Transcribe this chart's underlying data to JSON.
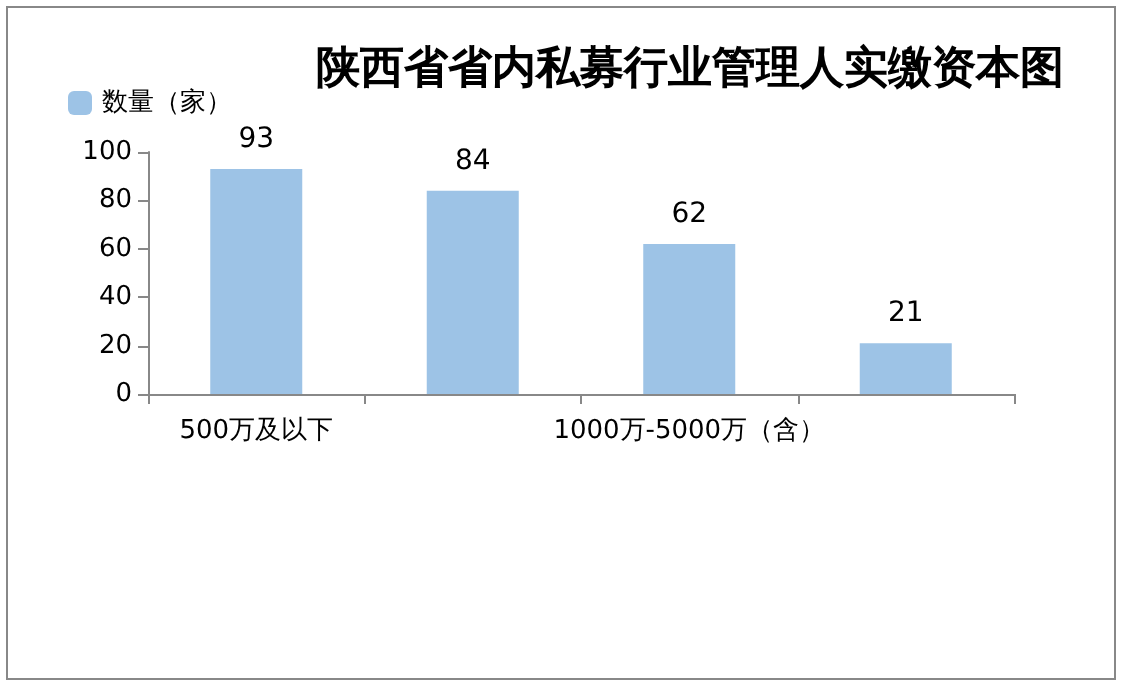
{
  "chart_data": {
    "type": "bar",
    "title": "陕西省省内私募行业管理人实缴资本图",
    "categories": [
      "500万及以下",
      null,
      "1000万-5000万（含）",
      null
    ],
    "series": [
      {
        "name": "数量（家）",
        "color": "#9dc3e6",
        "values": [
          93,
          84,
          62,
          21
        ]
      }
    ],
    "ylim": [
      0,
      100
    ],
    "yticks": [
      0,
      20,
      40,
      60,
      80,
      100
    ],
    "grid": false,
    "legend": "top left",
    "data_labels": true
  }
}
